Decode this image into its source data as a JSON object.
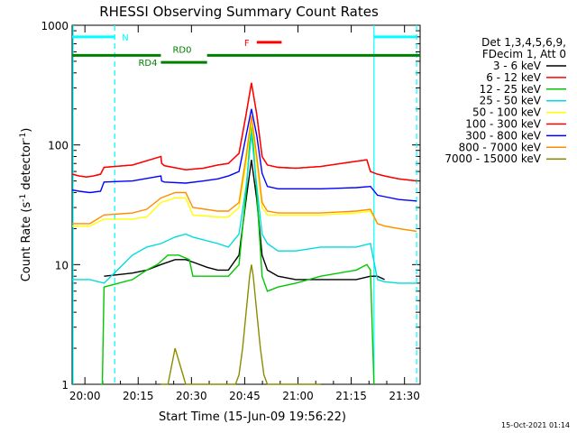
{
  "chart_data": {
    "type": "line",
    "title": "RHESSI Observing Summary Count Rates",
    "xlabel": "Start Time (15-Jun-09 19:56:22)",
    "ylabel": "Count Rate (s",
    "ylabel_sup": "-1",
    "ylabel_tail": " detector",
    "ylabel_close": ")",
    "footer": "15-Oct-2021 01:14",
    "x_unit": "minutes after 19:56:22",
    "xlim": [
      0,
      98
    ],
    "ylim": [
      1,
      1000
    ],
    "y_scale": "log",
    "x_ticks": [
      {
        "value": 3.6,
        "label": "20:00"
      },
      {
        "value": 18.6,
        "label": "20:15"
      },
      {
        "value": 33.6,
        "label": "20:30"
      },
      {
        "value": 48.6,
        "label": "20:45"
      },
      {
        "value": 63.6,
        "label": "21:00"
      },
      {
        "value": 78.6,
        "label": "21:15"
      },
      {
        "value": 93.6,
        "label": "21:30"
      }
    ],
    "y_ticks": [
      {
        "value": 1,
        "label": "1"
      },
      {
        "value": 10,
        "label": "10"
      },
      {
        "value": 100,
        "label": "100"
      },
      {
        "value": 1000,
        "label": "1000"
      }
    ],
    "legend": {
      "header": [
        "Det 1,3,4,5,6,9,",
        "FDecim 1, Att 0"
      ],
      "placement": "right"
    },
    "series": [
      {
        "name": "3 - 6 keV",
        "color": "#000000",
        "x": [
          9,
          17,
          21,
          25,
          29,
          32,
          34,
          38,
          41,
          44,
          47,
          49,
          50.5,
          52,
          53.5,
          55,
          58,
          63,
          70,
          80,
          84,
          86,
          88
        ],
        "y": [
          8,
          8.5,
          9,
          10,
          11,
          11,
          10.5,
          9.5,
          9,
          9,
          12,
          35,
          75,
          35,
          12,
          9,
          8,
          7.5,
          7.5,
          7.5,
          8,
          8,
          7.5
        ]
      },
      {
        "name": "6 - 12 keV",
        "color": "#ff0000",
        "x": [
          0,
          2,
          4,
          6,
          8,
          9,
          17,
          25,
          25.2,
          26,
          32,
          37,
          41,
          44,
          47,
          49,
          50.5,
          52,
          53.5,
          55,
          58,
          63,
          70,
          80,
          83,
          84,
          86,
          88,
          92,
          97
        ],
        "y": [
          57,
          55,
          54,
          55,
          57,
          65,
          68,
          80,
          70,
          67,
          62,
          64,
          68,
          70,
          85,
          180,
          330,
          180,
          80,
          68,
          65,
          64,
          66,
          73,
          75,
          60,
          57,
          55,
          52,
          50
        ]
      },
      {
        "name": "12 - 25 keV",
        "color": "#00c800",
        "x": [
          8,
          8.5,
          9,
          17,
          21,
          24,
          27,
          30,
          33,
          34,
          39,
          44,
          47,
          49,
          50.5,
          52,
          53.5,
          55,
          58,
          63,
          70,
          80,
          83,
          84,
          85
        ],
        "y": [
          1,
          1,
          6.5,
          7.5,
          9,
          10,
          12,
          12,
          11,
          8,
          8,
          8,
          10,
          40,
          160,
          40,
          8,
          6,
          6.5,
          7,
          8,
          9,
          10,
          9,
          1
        ]
      },
      {
        "name": "25 - 50 keV",
        "color": "#00dcdc",
        "x": [
          0,
          5,
          9,
          17,
          21,
          25,
          29,
          32,
          34,
          41,
          44,
          47,
          49,
          50.5,
          52,
          53.5,
          55,
          58,
          63,
          70,
          80,
          84,
          86,
          88,
          92,
          97
        ],
        "y": [
          7.5,
          7.5,
          7,
          12,
          14,
          15,
          17,
          18,
          17,
          15,
          14,
          18,
          45,
          125,
          45,
          18,
          15,
          13,
          13,
          14,
          14,
          15,
          7.5,
          7.2,
          7,
          7
        ]
      },
      {
        "name": "50 - 100 keV",
        "color": "#ffff00",
        "x": [
          0,
          5,
          9,
          17,
          21,
          25,
          29,
          32,
          34,
          41,
          44,
          47,
          49,
          50.5,
          52,
          53.5,
          55,
          58,
          63,
          70,
          80,
          84,
          86,
          88,
          92,
          97
        ],
        "y": [
          21,
          21,
          24,
          24,
          25,
          33,
          36,
          36,
          26,
          25,
          25,
          30,
          70,
          160,
          70,
          30,
          26,
          26,
          26,
          26,
          27,
          28,
          22,
          21,
          20,
          19
        ]
      },
      {
        "name": "100 - 300 keV",
        "color": "#ff0000",
        "x": [
          0,
          2,
          4,
          6,
          8,
          9,
          17,
          25,
          25.2,
          26,
          32,
          37,
          41,
          44,
          47,
          49,
          50.5,
          52,
          53.5,
          55,
          58,
          63,
          70,
          80,
          83,
          84,
          86,
          88,
          92,
          97
        ],
        "y": [
          57,
          55,
          54,
          55,
          57,
          65,
          68,
          80,
          70,
          67,
          62,
          64,
          68,
          70,
          85,
          180,
          330,
          180,
          80,
          68,
          65,
          64,
          66,
          73,
          75,
          60,
          57,
          55,
          52,
          50
        ]
      },
      {
        "name": "300 - 800 keV",
        "color": "#0000ff",
        "x": [
          0,
          2,
          5,
          8,
          9,
          17,
          25,
          25.2,
          26,
          32,
          37,
          41,
          44,
          47,
          49,
          50.5,
          52,
          53.5,
          55,
          58,
          63,
          70,
          80,
          84,
          86,
          88,
          92,
          97
        ],
        "y": [
          42,
          41,
          40,
          41,
          49,
          50,
          55,
          50,
          49,
          48,
          50,
          52,
          55,
          60,
          120,
          200,
          120,
          58,
          45,
          43,
          43,
          43,
          44,
          45,
          38,
          37,
          35,
          34
        ]
      },
      {
        "name": "800 - 7000 keV",
        "color": "#ff8c00",
        "x": [
          0,
          5,
          9,
          17,
          21,
          25,
          29,
          32,
          34,
          41,
          44,
          47,
          49,
          50.5,
          52,
          53.5,
          55,
          58,
          63,
          70,
          80,
          84,
          86,
          88,
          92,
          97
        ],
        "y": [
          22,
          22,
          26,
          27,
          29,
          36,
          40,
          40,
          30,
          28,
          28,
          33,
          80,
          175,
          80,
          33,
          28,
          27,
          27,
          27,
          28,
          29,
          22,
          21,
          20,
          19
        ]
      },
      {
        "name": "7000 - 15000 keV",
        "color": "#8b8b00",
        "x": [
          25,
          27,
          29,
          32,
          34,
          44,
          46,
          47,
          48,
          49,
          50,
          50.5,
          51,
          52,
          53,
          54,
          55,
          58,
          63,
          70
        ],
        "y": [
          1,
          1,
          2,
          1,
          1,
          1,
          1,
          1.2,
          2,
          4,
          8,
          10,
          8,
          4,
          2,
          1.2,
          1,
          1,
          1,
          1
        ]
      }
    ],
    "vertical_lines": {
      "color": "#00ffff",
      "solid_x": [
        0,
        85
      ],
      "dashed_x": [
        12,
        97
      ]
    },
    "state_bars": [
      {
        "label": "N",
        "color": "#00ffff",
        "x_ranges": [
          [
            0,
            12
          ],
          [
            85,
            97
          ]
        ],
        "y": 800
      },
      {
        "label": "RD0",
        "color": "#008000",
        "x_ranges": [
          [
            0,
            25
          ],
          [
            38,
            98
          ]
        ],
        "y": 560
      },
      {
        "label": "RD4",
        "color": "#008000",
        "x_ranges": [
          [
            25,
            38
          ]
        ],
        "y": 490
      },
      {
        "label": "F",
        "color": "#ff0000",
        "x_ranges": [
          [
            52,
            59
          ]
        ],
        "y": 720
      }
    ]
  }
}
